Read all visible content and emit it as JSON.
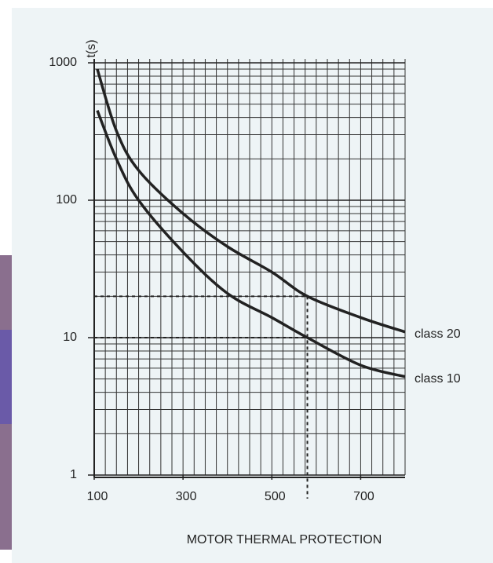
{
  "chart_data": {
    "type": "line",
    "title": "MOTOR THERMAL PROTECTION",
    "ylabel": "t(s)",
    "yscale": "log",
    "xlim": [
      100,
      800
    ],
    "ylim": [
      1,
      1000
    ],
    "xticks": [
      100,
      300,
      500,
      700
    ],
    "yticks": [
      1,
      10,
      100,
      1000
    ],
    "grid": {
      "x_step": 25,
      "y_log_minor": true
    },
    "reference": {
      "x": 580,
      "y": [
        20,
        10
      ]
    },
    "series": [
      {
        "name": "class 20",
        "color": "#222222",
        "x": [
          107,
          150,
          200,
          300,
          400,
          500,
          580,
          700,
          800
        ],
        "values": [
          900,
          320,
          165,
          80,
          46,
          30,
          20,
          14,
          11
        ]
      },
      {
        "name": "class 10",
        "color": "#222222",
        "x": [
          107,
          150,
          200,
          300,
          400,
          500,
          580,
          700,
          800
        ],
        "values": [
          450,
          200,
          100,
          42,
          21,
          14,
          10,
          6.3,
          5.2
        ]
      }
    ]
  }
}
